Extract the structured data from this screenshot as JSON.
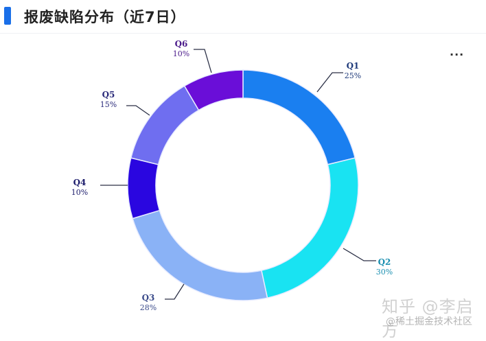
{
  "header": {
    "title": "报废缺陷分布（近7日）",
    "accent_color": "#1a6fe8",
    "more_label": "..."
  },
  "watermark": {
    "line1": "知乎 @李启方",
    "line2": "@稀土掘金技术社区"
  },
  "chart_data": {
    "type": "pie",
    "subtype": "donut",
    "title": "报废缺陷分布（近7日）",
    "categories": [
      "Q1",
      "Q2",
      "Q3",
      "Q4",
      "Q5",
      "Q6"
    ],
    "values": [
      25,
      30,
      28,
      10,
      15,
      10
    ],
    "labels": [
      "25%",
      "30%",
      "28%",
      "10%",
      "15%",
      "10%"
    ],
    "colors": [
      "#1a7ff0",
      "#19e3f2",
      "#8ab2f6",
      "#2a06e0",
      "#6f6ef0",
      "#6a0ed8"
    ],
    "label_colors": [
      "#1f3a7a",
      "#1a8fb0",
      "#3a4a8a",
      "#1a1a6a",
      "#2a2a7a",
      "#4a1a8a"
    ],
    "legend": "none",
    "start_angle": "12 o'clock, clockwise"
  }
}
